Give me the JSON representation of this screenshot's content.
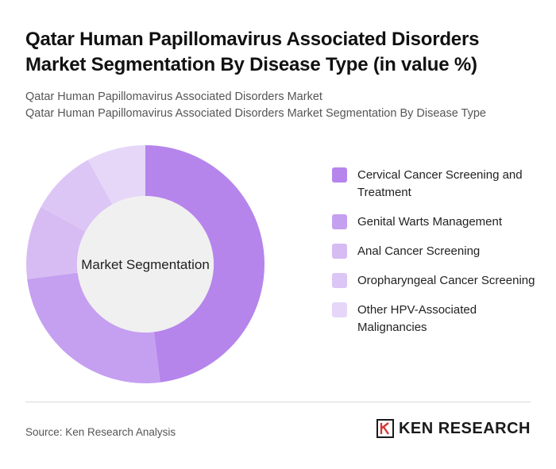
{
  "title": "Qatar Human Papillomavirus Associated Disorders Market Segmentation By Disease Type (in value %)",
  "subtitle_1": "Qatar Human Papillomavirus Associated Disorders Market",
  "subtitle_2": "Qatar Human Papillomavirus Associated Disorders Market Segmentation By Disease Type",
  "source": "Source: Ken Research Analysis",
  "brand": {
    "name": "KEN RESEARCH",
    "logo_icon": "ken-research-k-logo-icon"
  },
  "colors": {
    "background": "#ffffff",
    "center_fill": "#f0f0f0"
  },
  "chart_data": {
    "type": "pie",
    "center_label": "Market Segmentation",
    "categories": [
      "Cervical Cancer Screening and Treatment",
      "Genital Warts Management",
      "Anal Cancer Screening",
      "Oropharyngeal Cancer Screening",
      "Other HPV-Associated Malignancies"
    ],
    "values": [
      48,
      25,
      10,
      9,
      8
    ],
    "colors": [
      "#b585ec",
      "#c59ff0",
      "#d7bcf4",
      "#dcc6f5",
      "#e6d7f8"
    ],
    "legend_position": "right"
  }
}
